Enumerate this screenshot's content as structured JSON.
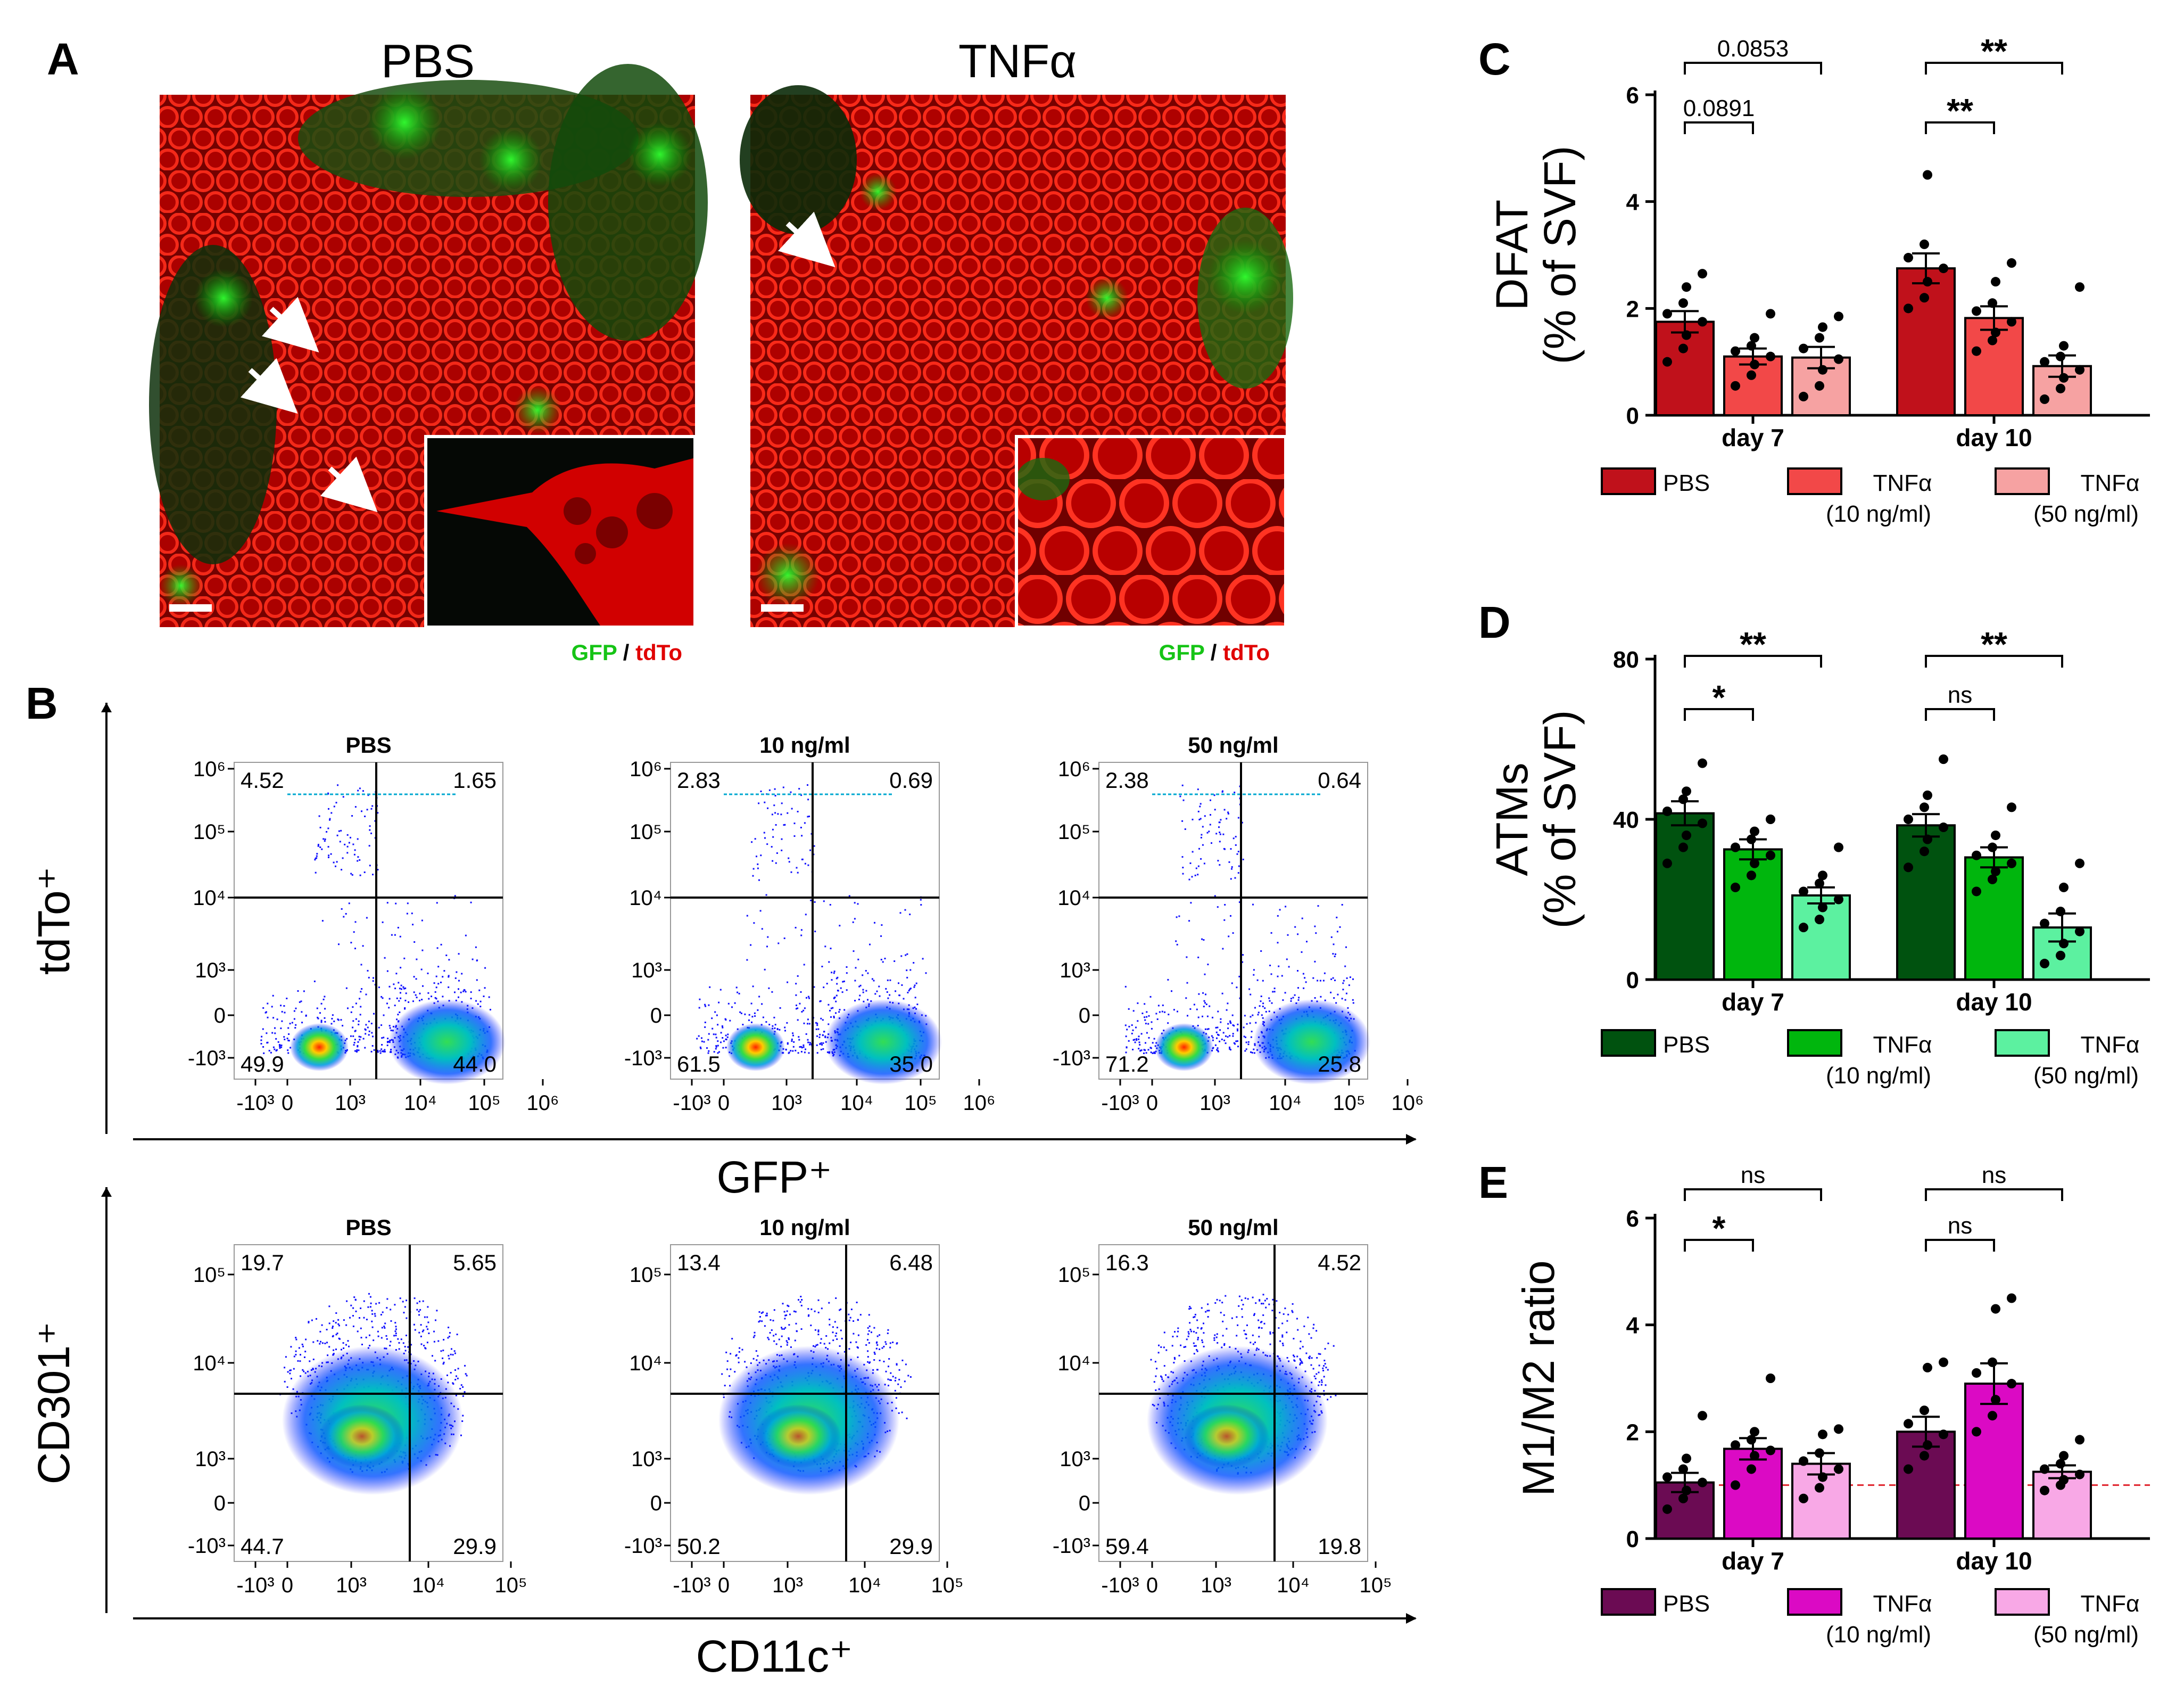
{
  "panel_letters": [
    "A",
    "B",
    "C",
    "D",
    "E"
  ],
  "panel_a": {
    "images": [
      {
        "label": "PBS",
        "legend_green": "GFP",
        "legend_sep": " / ",
        "legend_red": "tdTo"
      },
      {
        "label": "TNFα",
        "legend_green": "GFP",
        "legend_sep": " / ",
        "legend_red": "tdTo"
      }
    ]
  },
  "panel_b": {
    "row1": {
      "y_axis_label": "tdTo⁺",
      "x_axis_label": "GFP⁺",
      "y_ticks": [
        "10⁶",
        "10⁵",
        "10⁴",
        "10³",
        "0",
        "-10³"
      ],
      "x_ticks": [
        "-10³",
        "0",
        "10³",
        "10⁴",
        "10⁵",
        "10⁶"
      ],
      "plots": [
        {
          "title": "PBS",
          "q_ul": "4.52",
          "q_ur": "1.65",
          "q_ll": "49.9",
          "q_lr": "44.0"
        },
        {
          "title": "10 ng/ml",
          "q_ul": "2.83",
          "q_ur": "0.69",
          "q_ll": "61.5",
          "q_lr": "35.0"
        },
        {
          "title": "50 ng/ml",
          "q_ul": "2.38",
          "q_ur": "0.64",
          "q_ll": "71.2",
          "q_lr": "25.8"
        }
      ]
    },
    "row2": {
      "y_axis_label": "CD301⁺",
      "x_axis_label": "CD11c⁺",
      "y_ticks": [
        "10⁵",
        "10⁴",
        "10³",
        "0",
        "-10³"
      ],
      "x_ticks": [
        "-10³",
        "0",
        "10³",
        "10⁴",
        "10⁵"
      ],
      "plots": [
        {
          "title": "PBS",
          "q_ul": "19.7",
          "q_ur": "5.65",
          "q_ll": "44.7",
          "q_lr": "29.9"
        },
        {
          "title": "10 ng/ml",
          "q_ul": "13.4",
          "q_ur": "6.48",
          "q_ll": "50.2",
          "q_lr": "29.9"
        },
        {
          "title": "50 ng/ml",
          "q_ul": "16.3",
          "q_ur": "4.52",
          "q_ll": "59.4",
          "q_lr": "19.8"
        }
      ]
    }
  },
  "chart_data": [
    {
      "type": "bar",
      "panel": "C",
      "ylabel_line1": "DFAT",
      "ylabel_line2": "(% of SVF)",
      "categories": [
        "day 7",
        "day 10"
      ],
      "yticks": [
        "0",
        "2",
        "4",
        "6"
      ],
      "ylim": [
        0,
        6
      ],
      "series": [
        {
          "name": "PBS",
          "name_line2": "",
          "color": "#c0111b",
          "values": [
            1.75,
            2.75
          ],
          "sem": [
            0.2,
            0.28
          ],
          "points": [
            [
              1.0,
              1.25,
              1.5,
              1.75,
              1.9,
              2.1,
              2.4,
              2.65
            ],
            [
              2.0,
              2.2,
              2.5,
              2.75,
              2.95,
              3.2,
              4.5
            ]
          ]
        },
        {
          "name": "TNFα",
          "name_line2": "(10 ng/ml)",
          "color": "#f24848",
          "values": [
            1.1,
            1.82
          ],
          "sem": [
            0.15,
            0.22
          ],
          "points": [
            [
              0.55,
              0.75,
              0.95,
              1.1,
              1.2,
              1.3,
              1.45,
              1.9
            ],
            [
              1.2,
              1.4,
              1.55,
              1.75,
              1.95,
              2.1,
              2.5,
              2.85
            ]
          ]
        },
        {
          "name": "TNFα",
          "name_line2": "(50 ng/ml)",
          "color": "#f6a2a2",
          "values": [
            1.08,
            0.92
          ],
          "sem": [
            0.2,
            0.2
          ],
          "points": [
            [
              0.35,
              0.55,
              0.85,
              1.05,
              1.25,
              1.45,
              1.65,
              1.85
            ],
            [
              0.3,
              0.5,
              0.7,
              0.85,
              1.0,
              1.1,
              1.3,
              2.4
            ]
          ]
        }
      ],
      "significance": [
        {
          "day_index": 0,
          "pair": [
            0,
            1
          ],
          "level": 0,
          "label": "0.0891"
        },
        {
          "day_index": 0,
          "pair": [
            0,
            2
          ],
          "level": 1,
          "label": "0.0853"
        },
        {
          "day_index": 1,
          "pair": [
            0,
            1
          ],
          "level": 0,
          "label": "**"
        },
        {
          "day_index": 1,
          "pair": [
            0,
            2
          ],
          "level": 1,
          "label": "**"
        }
      ]
    },
    {
      "type": "bar",
      "panel": "D",
      "ylabel_line1": "ATMs",
      "ylabel_line2": "(% of SVF)",
      "categories": [
        "day 7",
        "day 10"
      ],
      "yticks": [
        "0",
        "40",
        "80"
      ],
      "ylim": [
        0,
        80
      ],
      "series": [
        {
          "name": "PBS",
          "name_line2": "",
          "color": "#00520f",
          "values": [
            41.5,
            38.5
          ],
          "sem": [
            3.0,
            2.8
          ],
          "points": [
            [
              29,
              33,
              36,
              39,
              42,
              45,
              47,
              54
            ],
            [
              28,
              32,
              35,
              38,
              40,
              43,
              46,
              55
            ]
          ]
        },
        {
          "name": "TNFα",
          "name_line2": "(10 ng/ml)",
          "color": "#00b60d",
          "values": [
            32.5,
            30.5
          ],
          "sem": [
            2.5,
            2.5
          ],
          "points": [
            [
              23,
              26,
              29,
              31,
              33,
              35,
              37,
              40
            ],
            [
              22,
              25,
              27,
              29,
              31,
              33,
              36,
              43
            ]
          ]
        },
        {
          "name": "TNFα",
          "name_line2": "(50 ng/ml)",
          "color": "#5cf1a0",
          "values": [
            21,
            13
          ],
          "sem": [
            2.0,
            3.5
          ],
          "points": [
            [
              13,
              15,
              18,
              20,
              22,
              24,
              26,
              33
            ],
            [
              4,
              6,
              9,
              12,
              14,
              17,
              23,
              29
            ]
          ]
        }
      ],
      "significance": [
        {
          "day_index": 0,
          "pair": [
            0,
            1
          ],
          "level": 0,
          "label": "*"
        },
        {
          "day_index": 0,
          "pair": [
            0,
            2
          ],
          "level": 1,
          "label": "**"
        },
        {
          "day_index": 1,
          "pair": [
            0,
            1
          ],
          "level": 0,
          "label": "ns"
        },
        {
          "day_index": 1,
          "pair": [
            0,
            2
          ],
          "level": 1,
          "label": "**"
        }
      ]
    },
    {
      "type": "bar",
      "panel": "E",
      "ylabel_line1": "M1/M2 ratio",
      "ylabel_line2": "",
      "categories": [
        "day 7",
        "day 10"
      ],
      "yticks": [
        "0",
        "2",
        "4",
        "6"
      ],
      "ylim": [
        0,
        6
      ],
      "reference_line": 1.0,
      "series": [
        {
          "name": "PBS",
          "name_line2": "",
          "color": "#6b0b53",
          "values": [
            1.05,
            2.0
          ],
          "sem": [
            0.18,
            0.28
          ],
          "points": [
            [
              0.55,
              0.75,
              0.9,
              1.05,
              1.15,
              1.3,
              1.5,
              2.3
            ],
            [
              1.3,
              1.55,
              1.75,
              1.95,
              2.15,
              2.4,
              3.2,
              3.3
            ]
          ]
        },
        {
          "name": "TNFα",
          "name_line2": "(10 ng/ml)",
          "color": "#db0ac4",
          "values": [
            1.68,
            2.9
          ],
          "sem": [
            0.2,
            0.38
          ],
          "points": [
            [
              1.0,
              1.3,
              1.55,
              1.65,
              1.75,
              1.85,
              2.0,
              3.0
            ],
            [
              2.0,
              2.3,
              2.6,
              2.9,
              3.1,
              3.3,
              4.3,
              4.5
            ]
          ]
        },
        {
          "name": "TNFα",
          "name_line2": "(50 ng/ml)",
          "color": "#f8a8e6",
          "values": [
            1.4,
            1.25
          ],
          "sem": [
            0.2,
            0.12
          ],
          "points": [
            [
              0.75,
              0.95,
              1.15,
              1.3,
              1.45,
              1.6,
              1.95,
              2.05
            ],
            [
              0.9,
              1.0,
              1.1,
              1.2,
              1.3,
              1.4,
              1.55,
              1.85
            ]
          ]
        }
      ],
      "significance": [
        {
          "day_index": 0,
          "pair": [
            0,
            1
          ],
          "level": 0,
          "label": "*"
        },
        {
          "day_index": 0,
          "pair": [
            0,
            2
          ],
          "level": 1,
          "label": "ns"
        },
        {
          "day_index": 1,
          "pair": [
            0,
            1
          ],
          "level": 0,
          "label": "ns"
        },
        {
          "day_index": 1,
          "pair": [
            0,
            2
          ],
          "level": 1,
          "label": "ns"
        }
      ]
    }
  ]
}
